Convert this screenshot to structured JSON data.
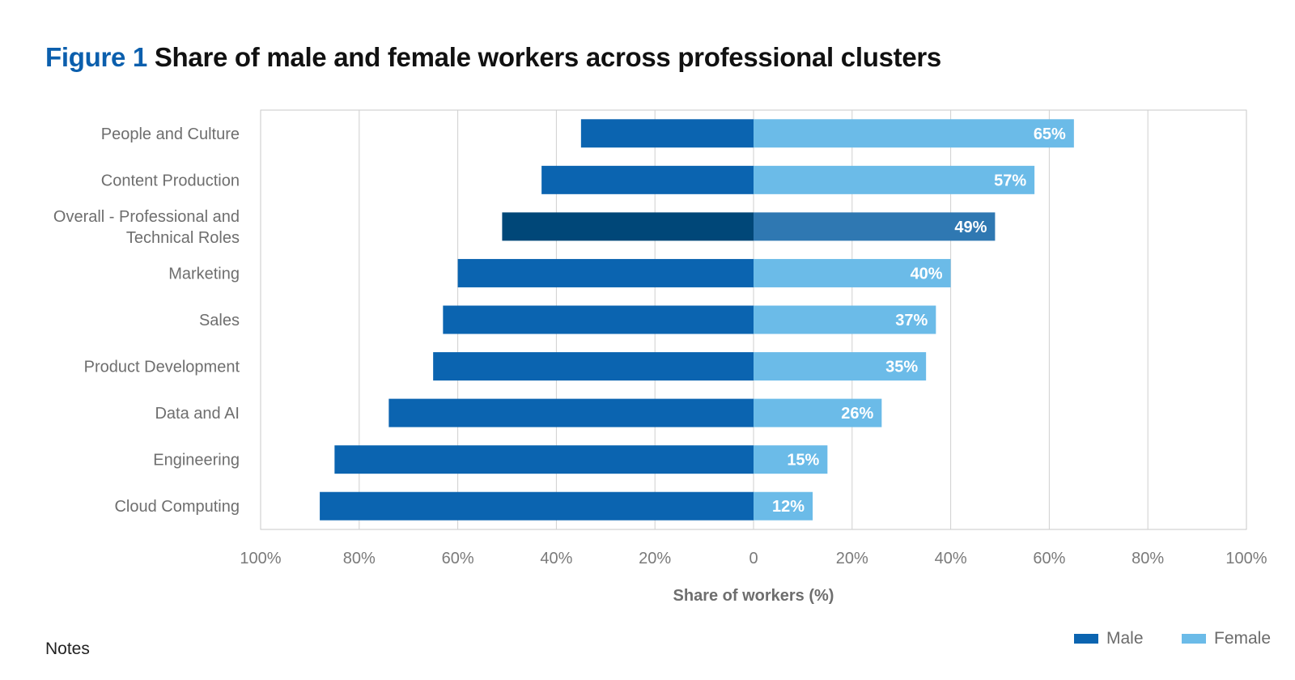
{
  "figure": {
    "label": "Figure 1",
    "title": "Share of male and female workers across professional clusters"
  },
  "chart_data": {
    "type": "bar",
    "orientation": "horizontal-diverging",
    "categories": [
      "People and Culture",
      "Content Production",
      "Overall - Professional and Technical Roles",
      "Marketing",
      "Sales",
      "Product Development",
      "Data and AI",
      "Engineering",
      "Cloud Computing"
    ],
    "category_lines": [
      [
        "People and Culture"
      ],
      [
        "Content Production"
      ],
      [
        "Overall - Professional and",
        "Technical Roles"
      ],
      [
        "Marketing"
      ],
      [
        "Sales"
      ],
      [
        "Product Development"
      ],
      [
        "Data and AI"
      ],
      [
        "Engineering"
      ],
      [
        "Cloud Computing"
      ]
    ],
    "series": [
      {
        "name": "Male",
        "values": [
          35,
          43,
          51,
          60,
          63,
          65,
          74,
          85,
          88
        ],
        "color": "#0b64b0"
      },
      {
        "name": "Female",
        "values": [
          65,
          57,
          49,
          40,
          37,
          35,
          26,
          15,
          12
        ],
        "color": "#6bbbe8"
      }
    ],
    "highlight": {
      "category": "Overall - Professional and Technical Roles",
      "male_color": "#004778",
      "female_color": "#2f78b2"
    },
    "data_labels": [
      "65%",
      "57%",
      "49%",
      "40%",
      "37%",
      "35%",
      "26%",
      "15%",
      "12%"
    ],
    "x_ticks": [
      "100%",
      "80%",
      "60%",
      "40%",
      "20%",
      "0",
      "20%",
      "40%",
      "60%",
      "80%",
      "100%"
    ],
    "xlim": [
      -100,
      100
    ],
    "xlabel": "Share of workers (%)",
    "ylabel": "",
    "grid": true,
    "legend_position": "bottom-right"
  },
  "notes": "Notes"
}
